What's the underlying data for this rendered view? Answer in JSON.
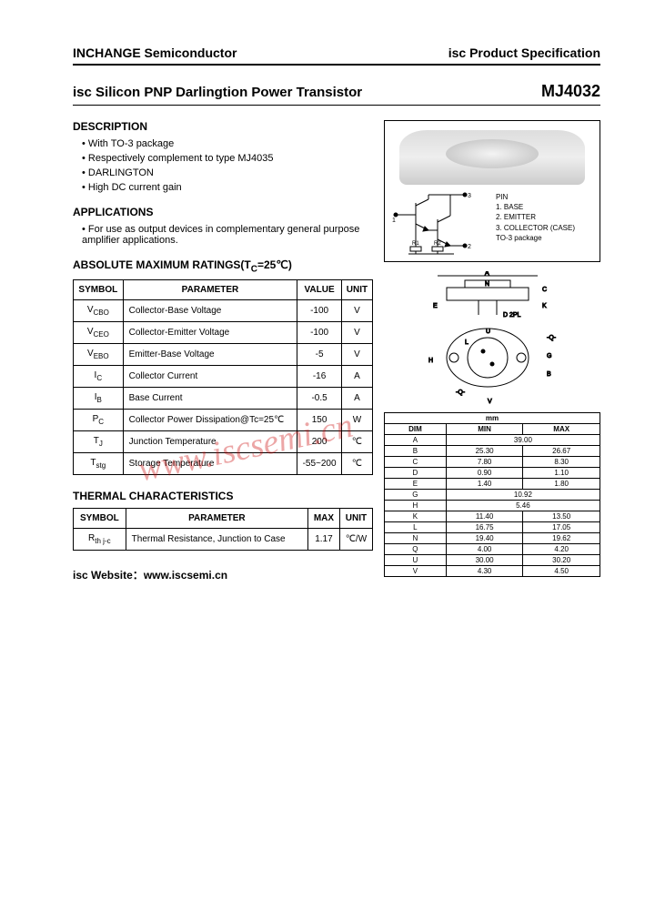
{
  "header": {
    "company": "INCHANGE Semiconductor",
    "spec": "isc Product Specification"
  },
  "title": {
    "line": "isc Silicon PNP Darlingtion Power Transistor",
    "part": "MJ4032"
  },
  "description": {
    "heading": "DESCRIPTION",
    "items": [
      "With TO-3 package",
      "Respectively complement to type MJ4035",
      "DARLINGTON",
      "High DC current gain"
    ]
  },
  "applications": {
    "heading": "APPLICATIONS",
    "items": [
      "For use as output devices in complementary general purpose amplifier applications."
    ]
  },
  "ratings": {
    "heading": "ABSOLUTE MAXIMUM RATINGS(T",
    "heading_sub": "C",
    "heading_tail": "=25℃)",
    "cols": {
      "symbol": "SYMBOL",
      "param": "PARAMETER",
      "value": "VALUE",
      "unit": "UNIT"
    },
    "rows": [
      {
        "sym": "V",
        "sub": "CBO",
        "param": "Collector-Base Voltage",
        "value": "-100",
        "unit": "V"
      },
      {
        "sym": "V",
        "sub": "CEO",
        "param": "Collector-Emitter Voltage",
        "value": "-100",
        "unit": "V"
      },
      {
        "sym": "V",
        "sub": "EBO",
        "param": "Emitter-Base Voltage",
        "value": "-5",
        "unit": "V"
      },
      {
        "sym": "I",
        "sub": "C",
        "param": "Collector Current",
        "value": "-16",
        "unit": "A"
      },
      {
        "sym": "I",
        "sub": "B",
        "param": "Base Current",
        "value": "-0.5",
        "unit": "A"
      },
      {
        "sym": "P",
        "sub": "C",
        "param": "Collector Power Dissipation@Tc=25℃",
        "value": "150",
        "unit": "W"
      },
      {
        "sym": "T",
        "sub": "J",
        "param": "Junction Temperature",
        "value": "200",
        "unit": "℃"
      },
      {
        "sym": "T",
        "sub": "stg",
        "param": "Storage Temperature",
        "value": "-55~200",
        "unit": "℃"
      }
    ]
  },
  "thermal": {
    "heading": "THERMAL CHARACTERISTICS",
    "cols": {
      "symbol": "SYMBOL",
      "param": "PARAMETER",
      "max": "MAX",
      "unit": "UNIT"
    },
    "rows": [
      {
        "sym": "R",
        "sub": "th j-c",
        "param": "Thermal Resistance, Junction to Case",
        "max": "1.17",
        "unit": "℃/W"
      }
    ]
  },
  "pins": {
    "heading": "PIN",
    "p1": "1. BASE",
    "p2": "2. EMITTER",
    "p3": "3. COLLECTOR (CASE)",
    "pkg": "TO-3 package",
    "r1": "R1",
    "r2": "R2"
  },
  "mech": {
    "labels": {
      "A": "A",
      "N": "N",
      "C": "C",
      "E": "E",
      "K": "K",
      "D": "D 2PL",
      "U": "U",
      "L": "L",
      "Q": "-Q-",
      "G": "G",
      "B": "B",
      "H": "H",
      "V": "V"
    },
    "dim_head": {
      "dim": "DIM",
      "min": "MIN",
      "max": "MAX",
      "unit": "mm"
    },
    "dims": [
      {
        "d": "A",
        "min": "39.00",
        "max": ""
      },
      {
        "d": "B",
        "min": "25.30",
        "max": "26.67"
      },
      {
        "d": "C",
        "min": "7.80",
        "max": "8.30"
      },
      {
        "d": "D",
        "min": "0.90",
        "max": "1.10"
      },
      {
        "d": "E",
        "min": "1.40",
        "max": "1.80"
      },
      {
        "d": "G",
        "min": "10.92",
        "max": ""
      },
      {
        "d": "H",
        "min": "5.46",
        "max": ""
      },
      {
        "d": "K",
        "min": "11.40",
        "max": "13.50"
      },
      {
        "d": "L",
        "min": "16.75",
        "max": "17.05"
      },
      {
        "d": "N",
        "min": "19.40",
        "max": "19.62"
      },
      {
        "d": "Q",
        "min": "4.00",
        "max": "4.20"
      },
      {
        "d": "U",
        "min": "30.00",
        "max": "30.20"
      },
      {
        "d": "V",
        "min": "4.30",
        "max": "4.50"
      }
    ]
  },
  "watermark": "www.iscsemi.cn",
  "footer": {
    "label": "isc Website：",
    "url": "www.iscsemi.cn"
  },
  "colors": {
    "text": "#000000",
    "border": "#000000",
    "bg": "#ffffff",
    "watermark": "rgba(200,0,0,0.35)"
  }
}
